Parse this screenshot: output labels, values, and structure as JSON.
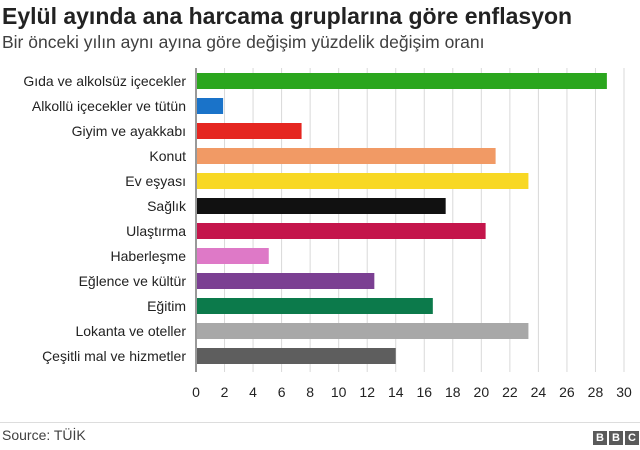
{
  "title": "Eylül ayında ana harcama gruplarına göre enflasyon",
  "subtitle": "Bir önceki yılın aynı ayına göre değişim yüzdelik değişim oranı",
  "source": "Source: TÜİK",
  "logo": [
    "B",
    "B",
    "C"
  ],
  "chart_data": {
    "type": "bar",
    "orientation": "horizontal",
    "categories": [
      "Gıda ve alkolsüz içecekler",
      "Alkollü içecekler ve tütün",
      "Giyim ve ayakkabı",
      "Konut",
      "Ev eşyası",
      "Sağlık",
      "Ulaştırma",
      "Haberleşme",
      "Eğlence ve kültür",
      "Eğitim",
      "Lokanta ve oteller",
      "Çeşitli mal ve hizmetler"
    ],
    "values": [
      28.8,
      1.9,
      7.4,
      21.0,
      23.3,
      17.5,
      20.3,
      5.1,
      12.5,
      16.6,
      23.3,
      14.0
    ],
    "colors": [
      "#2ba61e",
      "#1a73c9",
      "#e52620",
      "#f19a65",
      "#f8d824",
      "#111111",
      "#c4154b",
      "#de79c7",
      "#7b3f92",
      "#0c7a4b",
      "#a8a8a8",
      "#5e5e5e"
    ],
    "xlim": [
      0,
      30
    ],
    "xticks": [
      0,
      2,
      4,
      6,
      8,
      10,
      12,
      14,
      16,
      18,
      20,
      22,
      24,
      26,
      28,
      30
    ],
    "grid": true
  }
}
